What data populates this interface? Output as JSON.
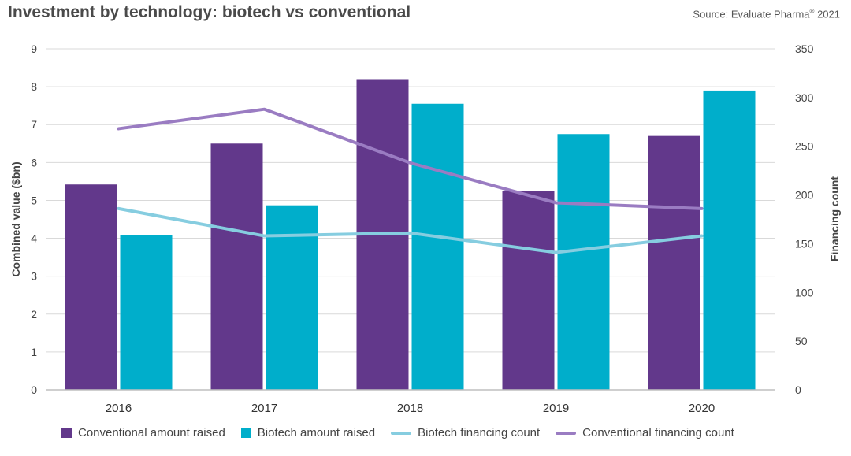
{
  "header": {
    "title": "Investment by technology: biotech vs conventional",
    "source_text": "Source: Evaluate Pharma",
    "source_mark": "®",
    "source_year": " 2021"
  },
  "chart_data": {
    "type": "bar",
    "categories": [
      "2016",
      "2017",
      "2018",
      "2019",
      "2020"
    ],
    "ylabel": "Combined value ($bn)",
    "y2label": "Financing count",
    "ylim": [
      0,
      9
    ],
    "y2lim": [
      0,
      350
    ],
    "yticks": [
      "0",
      "1",
      "2",
      "3",
      "4",
      "5",
      "6",
      "7",
      "8",
      "9"
    ],
    "y2ticks": [
      "0",
      "50",
      "100",
      "150",
      "200",
      "250",
      "300",
      "350"
    ],
    "grid": true,
    "legend_position": "bottom",
    "series": [
      {
        "name": "Conventional amount raised",
        "type": "bar",
        "axis": "left",
        "color": "#62388b",
        "values": [
          5.42,
          6.5,
          8.2,
          5.24,
          6.7
        ]
      },
      {
        "name": "Biotech amount raised",
        "type": "bar",
        "axis": "left",
        "color": "#00aecb",
        "values": [
          4.08,
          4.87,
          7.55,
          6.75,
          7.9
        ]
      },
      {
        "name": "Biotech financing count",
        "type": "line",
        "axis": "right",
        "color": "#86cde0",
        "values": [
          186,
          158,
          161,
          141,
          158
        ]
      },
      {
        "name": "Conventional financing count",
        "type": "line",
        "axis": "right",
        "color": "#9a7cc2",
        "values": [
          268,
          288,
          233,
          192,
          186
        ]
      }
    ]
  }
}
